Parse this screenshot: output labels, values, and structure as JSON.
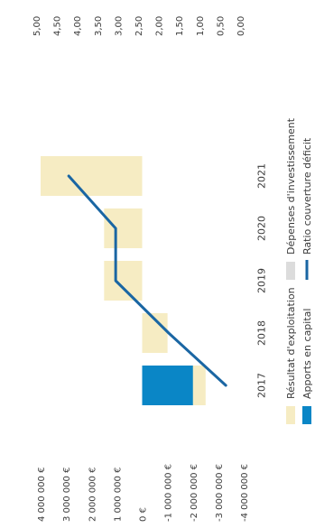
{
  "chart_data": {
    "type": "bar",
    "orientation": "rotated-90-clockwise",
    "categories": [
      "2017",
      "2018",
      "2019",
      "2020",
      "2021"
    ],
    "left_axis": {
      "ticks": [
        "4 000 000 €",
        "3 000 000 €",
        "2 000 000 €",
        "1 000 000 €",
        "0 €",
        "-1 000 000 €",
        "-2 000 000 €",
        "-3 000 000 €",
        "-4 000 000 €"
      ],
      "range": [
        -4000000,
        4000000
      ]
    },
    "right_axis": {
      "ticks": [
        "5,00",
        "4,50",
        "4,00",
        "3,50",
        "3,00",
        "2,50",
        "2,00",
        "1,50",
        "1,00",
        "0,50",
        "0,00"
      ],
      "range": [
        0,
        5
      ]
    },
    "series": [
      {
        "name": "Résultat d'exploitation",
        "kind": "bar",
        "color": "#f6ecc3",
        "values": [
          -2500000,
          -1000000,
          1500000,
          1500000,
          4000000
        ]
      },
      {
        "name": "Dépenses d'investissement",
        "kind": "bar",
        "color": "#dcdcdc",
        "values": [
          0,
          0,
          0,
          0,
          0
        ]
      },
      {
        "name": "Apports en capital",
        "kind": "bar",
        "color": "#0a86c6",
        "values": [
          -2000000,
          0,
          0,
          0,
          0
        ]
      },
      {
        "name": "Ratio couverture déficit",
        "kind": "line",
        "color": "#1a66a3",
        "values": [
          0.35,
          1.75,
          3.05,
          3.05,
          4.2
        ]
      }
    ],
    "legend": {
      "position": "bottom"
    }
  }
}
